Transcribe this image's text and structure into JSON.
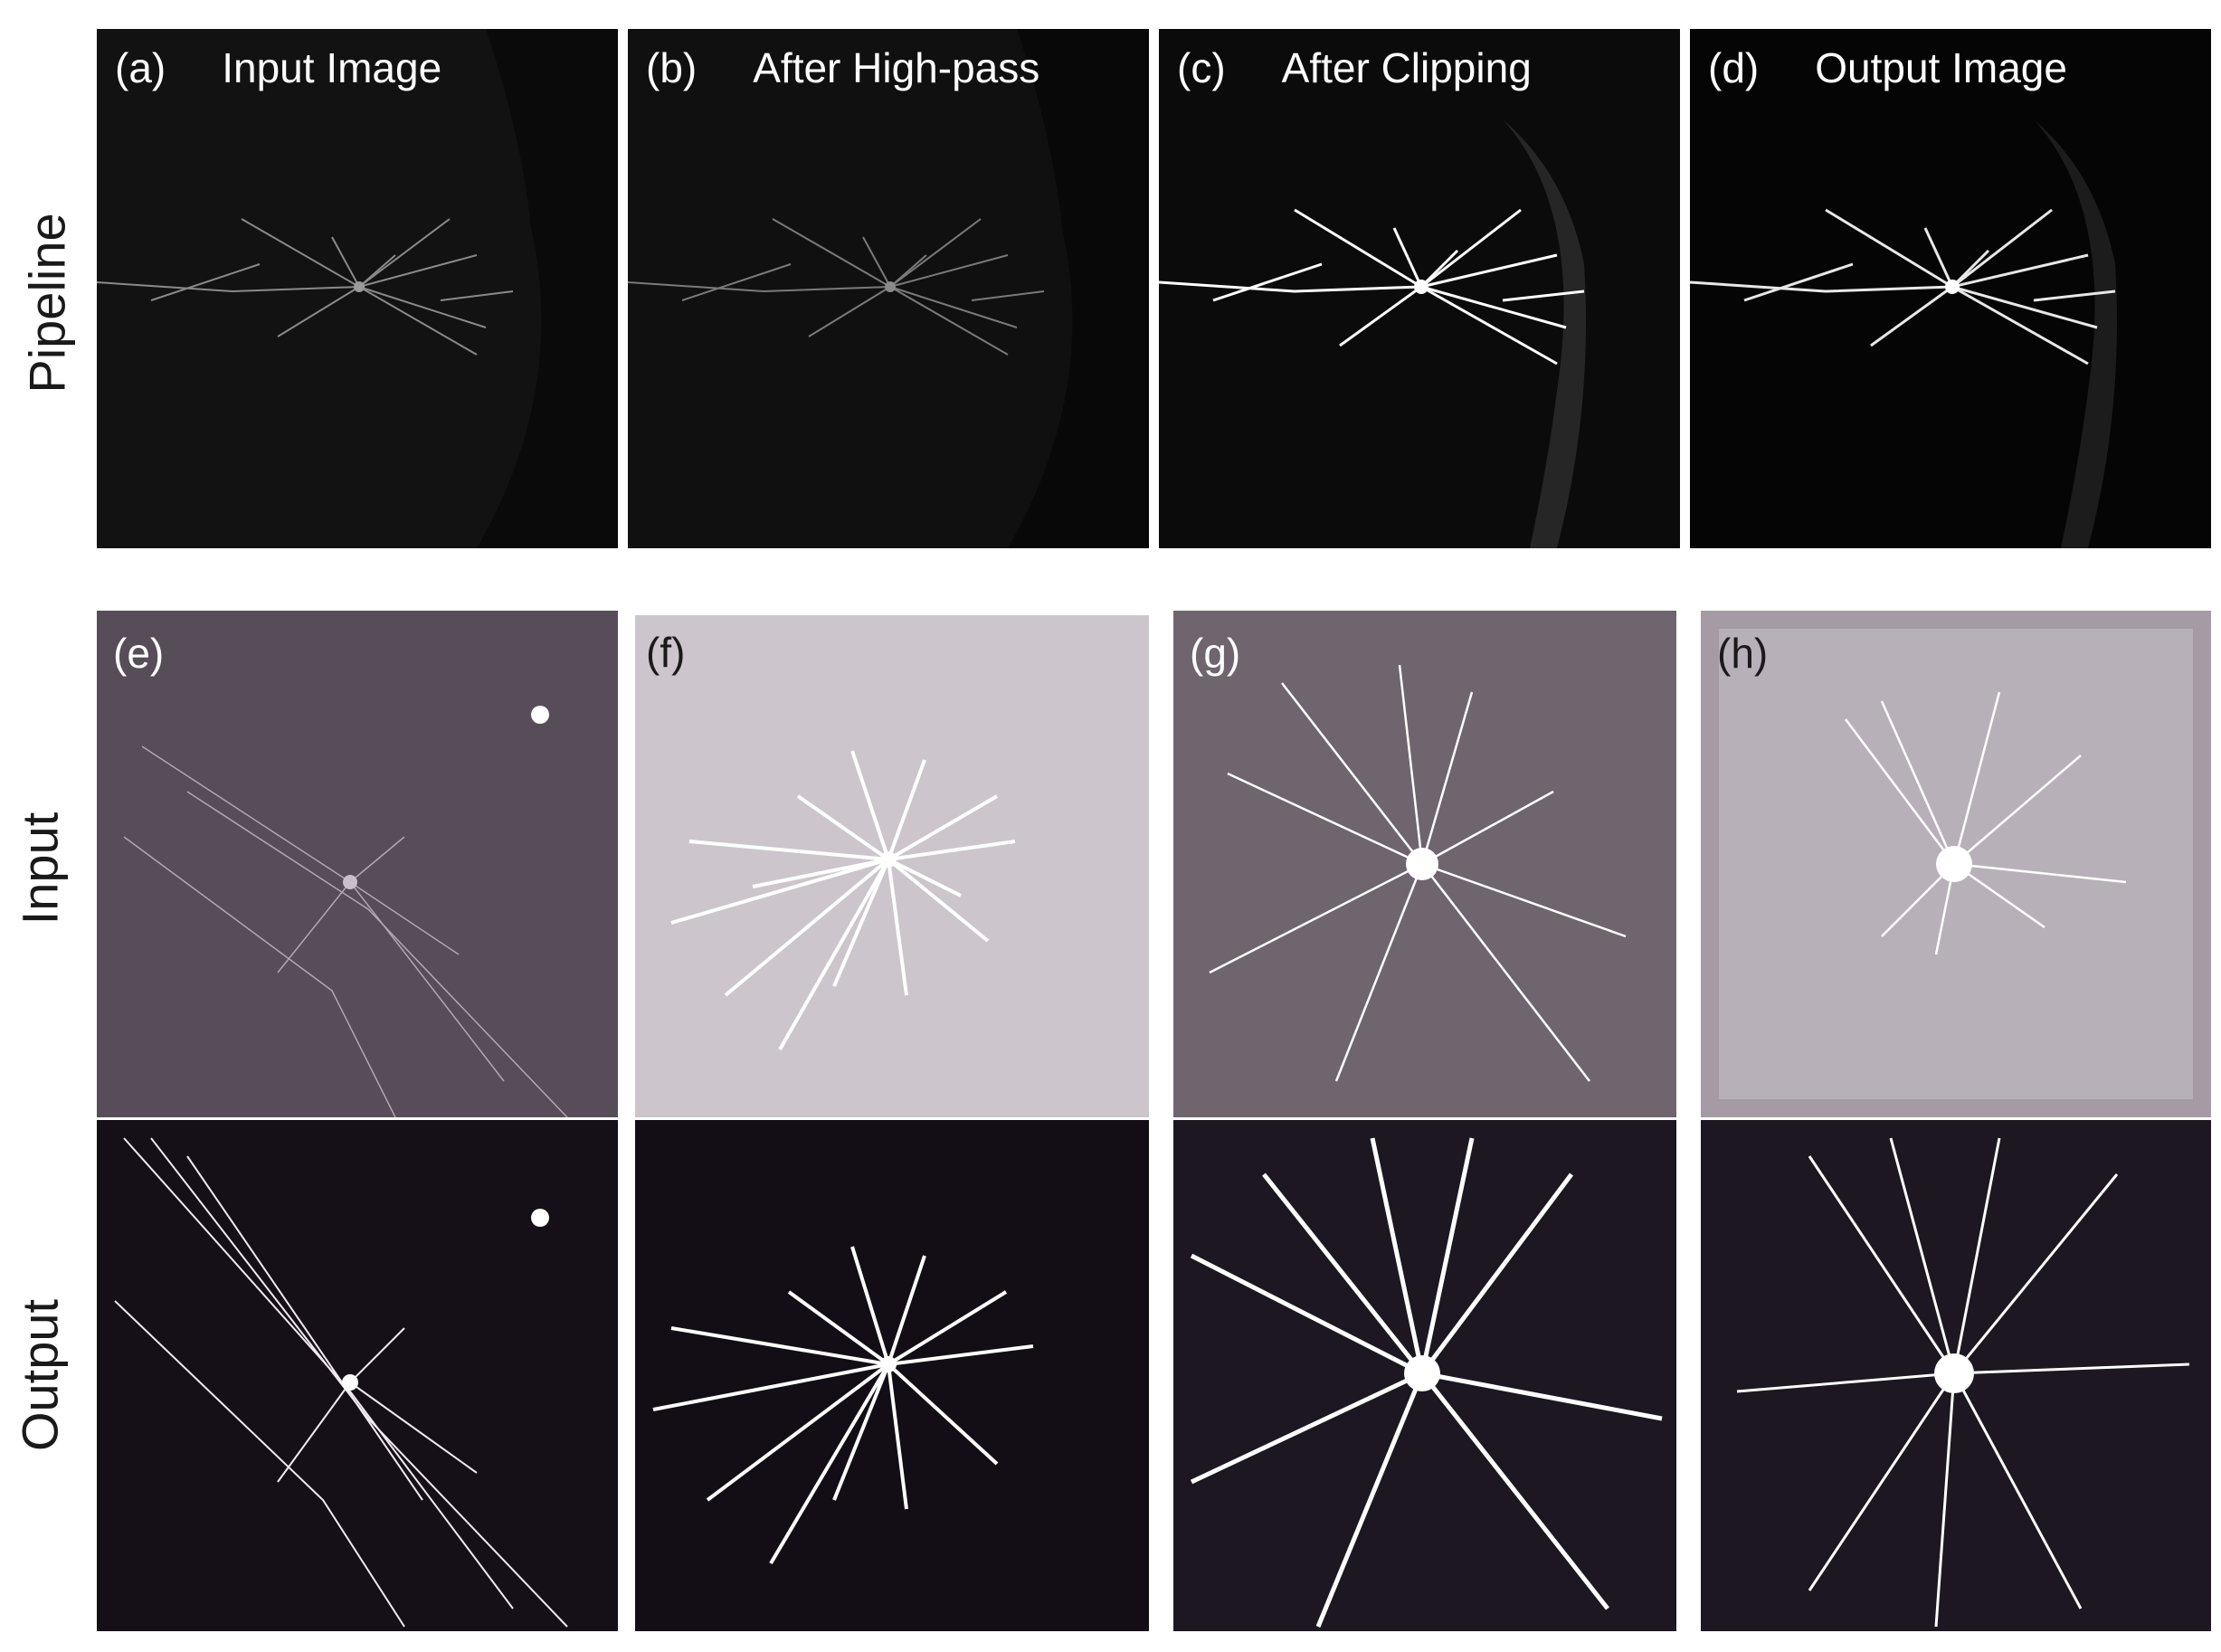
{
  "figure": {
    "row_labels": {
      "pipeline": "Pipeline",
      "input": "Input",
      "output": "Output"
    },
    "panels": {
      "a": {
        "letter": "(a)",
        "caption": "Input Image"
      },
      "b": {
        "letter": "(b)",
        "caption": "After High-pass"
      },
      "c": {
        "letter": "(c)",
        "caption": "After Clipping"
      },
      "d": {
        "letter": "(d)",
        "caption": "Output Image"
      },
      "e": {
        "letter": "(e)"
      },
      "f": {
        "letter": "(f)"
      },
      "g": {
        "letter": "(g)"
      },
      "h": {
        "letter": "(h)"
      }
    },
    "colors": {
      "pipeline_bg": "#141414",
      "input_bg": "#574d58",
      "output_bg": "#150f17",
      "neuron": "#ffffff"
    }
  }
}
